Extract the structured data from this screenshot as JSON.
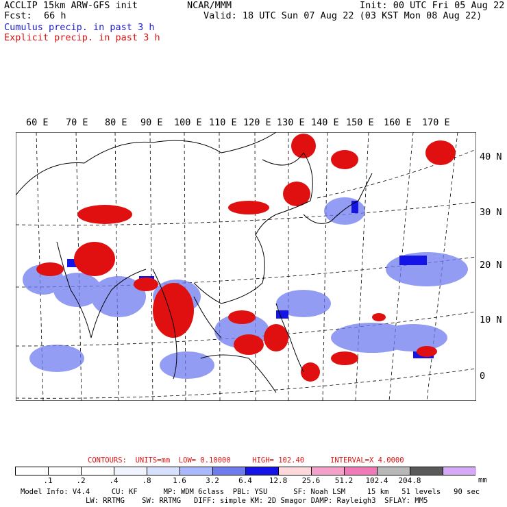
{
  "header": {
    "title_left": "ACCLIP 15km ARW-GFS init",
    "forecast_label": "Fcst:",
    "forecast_value": "66 h",
    "center_label": "NCAR/MMM",
    "init_time": "Init: 00 UTC Fri 05 Aug 22",
    "valid_time": "Valid: 18 UTC Sun 07 Aug 22 (03 KST Mon 08 Aug 22)",
    "legend_cumulus": "Cumulus precip. in past 3 h",
    "legend_explicit": "Explicit precip. in past 3 h"
  },
  "map": {
    "longitude_labels": [
      "60 E",
      "70 E",
      "80 E",
      "90 E",
      "100 E",
      "110 E",
      "120 E",
      "130 E",
      "140 E",
      "150 E",
      "160 E",
      "170 E"
    ],
    "latitude_labels": [
      "40 N",
      "30 N",
      "20 N",
      "10 N",
      "0"
    ],
    "colors": {
      "cumulus": "#1a1acc",
      "explicit": "#e01010",
      "coast": "#000000"
    }
  },
  "contours": {
    "label": "CONTOURS:",
    "units": "UNITS=mm",
    "low": "LOW= 0.10000",
    "high": "HIGH= 102.40",
    "interval": "INTERVAL=X 4.0000"
  },
  "scale": {
    "unit": "mm",
    "ticks": [
      ".1",
      ".2",
      ".4",
      ".8",
      "1.6",
      "3.2",
      "6.4",
      "12.8",
      "25.6",
      "51.2",
      "102.4",
      "204.8"
    ],
    "colors": [
      "#ffffff",
      "#ffffff",
      "#ffffff",
      "#f0f4ff",
      "#d7e0ff",
      "#aab8ff",
      "#6f7cf0",
      "#1414e6",
      "#ffd8dc",
      "#f5a0c8",
      "#f079b8",
      "#b8b8b8",
      "#5a5a5a",
      "#d8a8f8"
    ]
  },
  "model_info": {
    "line1": "Model Info: V4.4     CU: KF      MP: WDM 6class  PBL: YSU      SF: Noah LSM     15 km   51 levels   90 sec",
    "line2": "LW: RRTMG    SW: RRTMG   DIFF: simple KM: 2D Smagor DAMP: Rayleigh3  SFLAY: MM5"
  }
}
